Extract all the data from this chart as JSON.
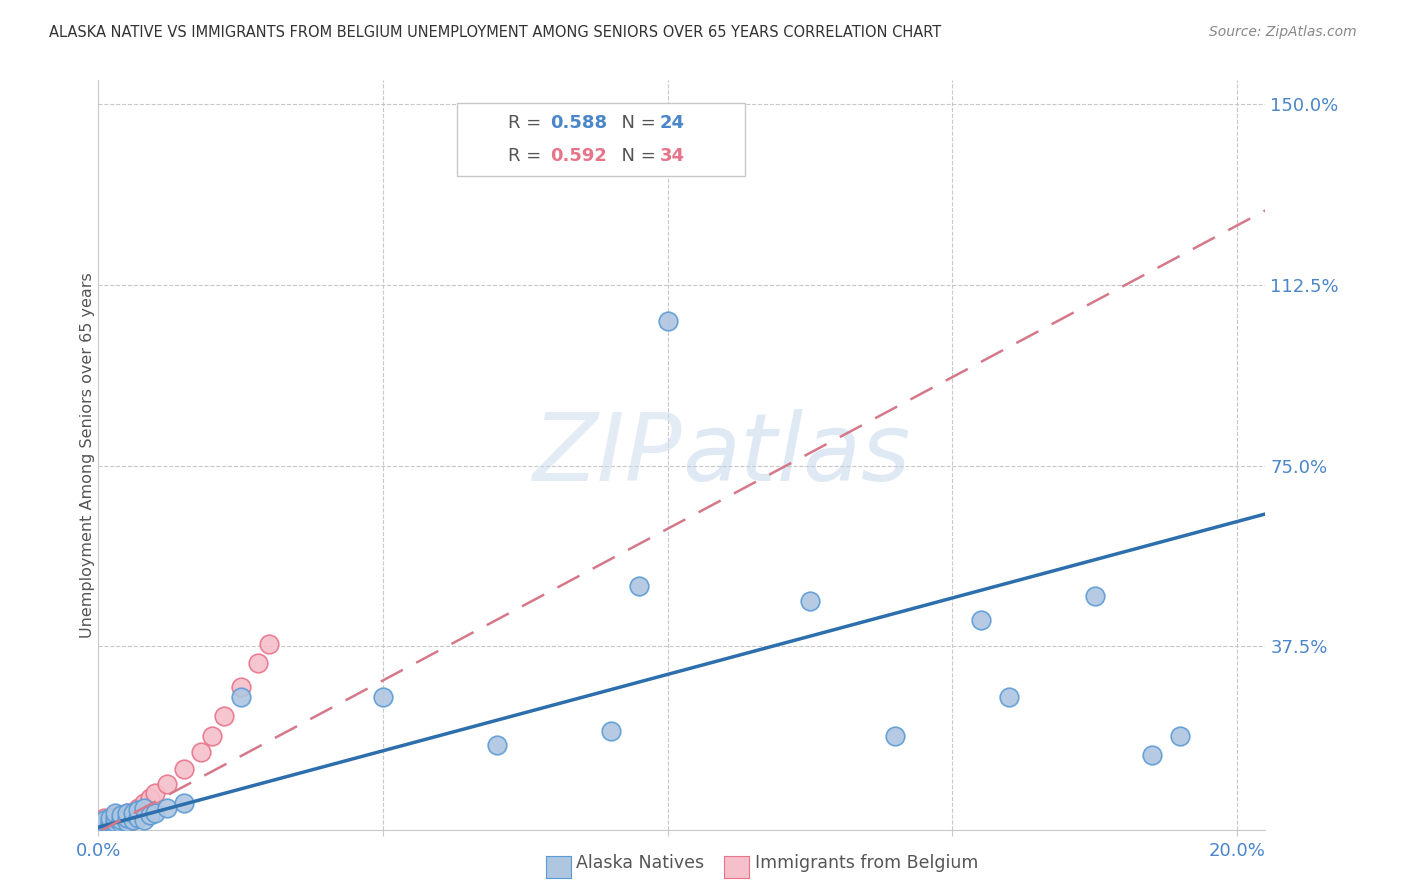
{
  "title": "ALASKA NATIVE VS IMMIGRANTS FROM BELGIUM UNEMPLOYMENT AMONG SENIORS OVER 65 YEARS CORRELATION CHART",
  "source": "Source: ZipAtlas.com",
  "ylabel": "Unemployment Among Seniors over 65 years",
  "xlim": [
    0.0,
    0.205
  ],
  "ylim": [
    -0.005,
    1.55
  ],
  "alaska_color": "#aec6e0",
  "alaska_edge_color": "#5b9bd5",
  "belgium_color": "#f5c0cb",
  "belgium_edge_color": "#e8748a",
  "line_blue": "#2d6fac",
  "line_pink": "#d4788a",
  "watermark_color": "#dde8f5",
  "background_color": "#ffffff",
  "grid_color": "#c8c8c8",
  "tick_color": "#4a86c8",
  "alaska_x": [
    0.001,
    0.001,
    0.001,
    0.002,
    0.002,
    0.002,
    0.003,
    0.003,
    0.003,
    0.003,
    0.004,
    0.004,
    0.004,
    0.005,
    0.005,
    0.005,
    0.006,
    0.006,
    0.007,
    0.007,
    0.008,
    0.008,
    0.009,
    0.01,
    0.012,
    0.015,
    0.025,
    0.05,
    0.07,
    0.09,
    0.095,
    0.1,
    0.125,
    0.14,
    0.155,
    0.16,
    0.175,
    0.185,
    0.19
  ],
  "alaska_y": [
    0.005,
    0.01,
    0.015,
    0.005,
    0.01,
    0.02,
    0.005,
    0.01,
    0.02,
    0.03,
    0.008,
    0.015,
    0.025,
    0.01,
    0.02,
    0.03,
    0.015,
    0.03,
    0.02,
    0.035,
    0.015,
    0.04,
    0.025,
    0.03,
    0.04,
    0.05,
    0.27,
    0.27,
    0.17,
    0.2,
    0.5,
    1.05,
    0.47,
    0.19,
    0.43,
    0.27,
    0.48,
    0.15,
    0.19
  ],
  "belgium_x": [
    0.001,
    0.001,
    0.001,
    0.001,
    0.002,
    0.002,
    0.002,
    0.002,
    0.003,
    0.003,
    0.003,
    0.003,
    0.003,
    0.004,
    0.004,
    0.004,
    0.005,
    0.005,
    0.005,
    0.006,
    0.006,
    0.007,
    0.007,
    0.008,
    0.009,
    0.01,
    0.012,
    0.015,
    0.018,
    0.02,
    0.022,
    0.025,
    0.028,
    0.03
  ],
  "belgium_y": [
    0.005,
    0.01,
    0.015,
    0.02,
    0.005,
    0.01,
    0.015,
    0.02,
    0.005,
    0.01,
    0.015,
    0.02,
    0.025,
    0.01,
    0.015,
    0.025,
    0.01,
    0.02,
    0.03,
    0.015,
    0.03,
    0.025,
    0.04,
    0.05,
    0.06,
    0.07,
    0.09,
    0.12,
    0.155,
    0.19,
    0.23,
    0.29,
    0.34,
    0.38
  ],
  "blue_line_x": [
    0.0,
    0.205
  ],
  "blue_line_y": [
    0.0,
    0.65
  ],
  "pink_line_x": [
    0.0,
    0.205
  ],
  "pink_line_y": [
    -0.01,
    1.28
  ]
}
